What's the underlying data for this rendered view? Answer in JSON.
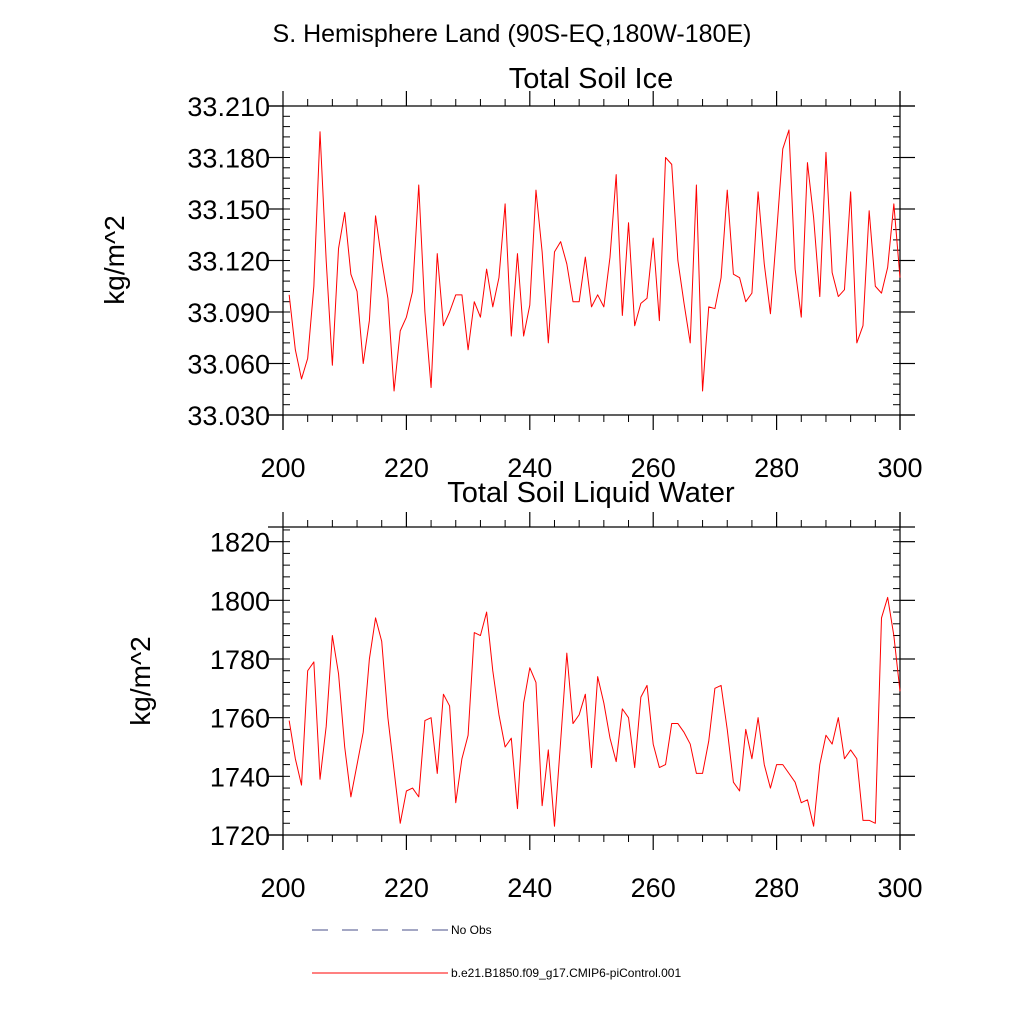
{
  "figure": {
    "title": "S. Hemisphere Land (90S-EQ,180W-180E)"
  },
  "legend": [
    {
      "label": "No Obs",
      "color": "#4a4f8a",
      "style": "dashed"
    },
    {
      "label": "b.e21.B1850.f09_g17.CMIP6-piControl.001",
      "color": "#ff0000",
      "style": "solid"
    }
  ],
  "chart_data": [
    {
      "type": "line",
      "title": "Total Soil Ice",
      "ylabel": "kg/m^2",
      "xlabel": "",
      "xlim": [
        200,
        300
      ],
      "ylim": [
        33.03,
        33.21
      ],
      "x_ticks": [
        200,
        220,
        240,
        260,
        280,
        300
      ],
      "y_ticks": [
        "33.030",
        "33.060",
        "33.090",
        "33.120",
        "33.150",
        "33.180",
        "33.210"
      ],
      "y_tick_values": [
        33.03,
        33.06,
        33.09,
        33.12,
        33.15,
        33.18,
        33.21
      ],
      "series": [
        {
          "name": "b.e21.B1850.f09_g17.CMIP6-piControl.001",
          "color": "#ff0000",
          "x_start": 201,
          "values": [
            33.1,
            33.068,
            33.051,
            33.063,
            33.105,
            33.195,
            33.12,
            33.059,
            33.127,
            33.148,
            33.112,
            33.102,
            33.06,
            33.085,
            33.146,
            33.12,
            33.098,
            33.044,
            33.079,
            33.087,
            33.102,
            33.164,
            33.09,
            33.046,
            33.124,
            33.082,
            33.09,
            33.1,
            33.1,
            33.068,
            33.096,
            33.087,
            33.115,
            33.093,
            33.11,
            33.153,
            33.076,
            33.124,
            33.076,
            33.094,
            33.161,
            33.125,
            33.072,
            33.125,
            33.131,
            33.118,
            33.096,
            33.096,
            33.122,
            33.093,
            33.1,
            33.093,
            33.122,
            33.17,
            33.088,
            33.142,
            33.082,
            33.095,
            33.098,
            33.133,
            33.085,
            33.18,
            33.176,
            33.12,
            33.095,
            33.072,
            33.164,
            33.044,
            33.093,
            33.092,
            33.11,
            33.161,
            33.112,
            33.11,
            33.096,
            33.101,
            33.16,
            33.118,
            33.089,
            33.136,
            33.185,
            33.196,
            33.115,
            33.087,
            33.177,
            33.145,
            33.099,
            33.183,
            33.113,
            33.099,
            33.103,
            33.16,
            33.072,
            33.082,
            33.149,
            33.105,
            33.101,
            33.116,
            33.153,
            33.11
          ]
        }
      ]
    },
    {
      "type": "line",
      "title": "Total Soil Liquid Water",
      "ylabel": "kg/m^2",
      "xlabel": "",
      "xlim": [
        200,
        300
      ],
      "ylim": [
        1720,
        1825
      ],
      "x_ticks": [
        200,
        220,
        240,
        260,
        280,
        300
      ],
      "y_ticks": [
        "1720",
        "1740",
        "1760",
        "1780",
        "1800",
        "1820"
      ],
      "y_tick_values": [
        1720,
        1740,
        1760,
        1780,
        1800,
        1820
      ],
      "series": [
        {
          "name": "b.e21.B1850.f09_g17.CMIP6-piControl.001",
          "color": "#ff0000",
          "x_start": 201,
          "values": [
            1759,
            1746,
            1737,
            1776,
            1779,
            1739,
            1757,
            1788,
            1775,
            1750,
            1733,
            1744,
            1755,
            1780,
            1794,
            1786,
            1760,
            1742,
            1724,
            1735,
            1736,
            1733,
            1759,
            1760,
            1741,
            1768,
            1764,
            1731,
            1746,
            1754,
            1789,
            1788,
            1796,
            1776,
            1761,
            1750,
            1753,
            1729,
            1765,
            1777,
            1772,
            1730,
            1749,
            1723,
            1752,
            1782,
            1758,
            1761,
            1768,
            1743,
            1774,
            1765,
            1753,
            1745,
            1763,
            1760,
            1743,
            1767,
            1771,
            1751,
            1743,
            1744,
            1758,
            1758,
            1755,
            1751,
            1741,
            1741,
            1752,
            1770,
            1771,
            1756,
            1738,
            1735,
            1756,
            1746,
            1760,
            1744,
            1736,
            1744,
            1744,
            1741,
            1738,
            1731,
            1732,
            1723,
            1744,
            1754,
            1751,
            1760,
            1746,
            1749,
            1746,
            1725,
            1725,
            1724,
            1794,
            1801,
            1788,
            1769
          ]
        }
      ]
    }
  ]
}
